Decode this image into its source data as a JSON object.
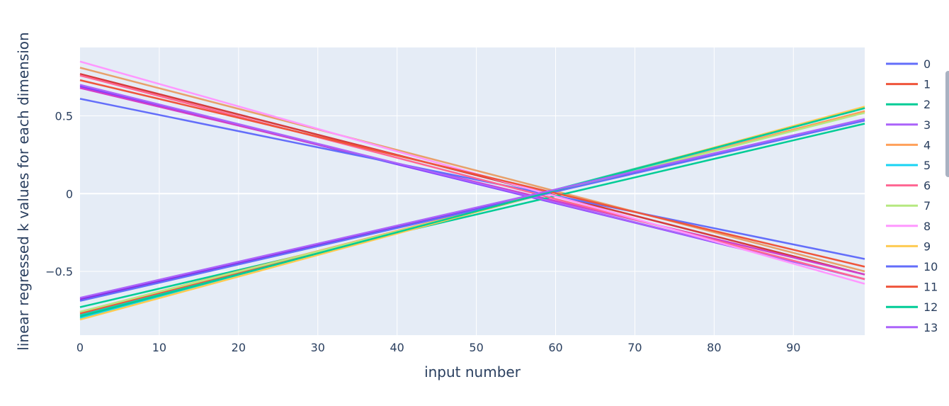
{
  "chart_data": {
    "type": "line",
    "xlabel": "input number",
    "ylabel": "linear regressed k values for each dimension",
    "xlim": [
      0,
      99
    ],
    "ylim": [
      -0.91,
      0.94
    ],
    "xticks": [
      0,
      10,
      20,
      30,
      40,
      50,
      60,
      70,
      80,
      90
    ],
    "yticks": [
      -0.5,
      0,
      0.5
    ],
    "ytick_labels": [
      "−0.5",
      "0",
      "0.5"
    ],
    "grid": true,
    "legend_position": "right",
    "plot_background": "#E5ECF6",
    "series": [
      {
        "name": "0",
        "color": "#636EFA",
        "x": [
          0,
          99
        ],
        "y": [
          0.61,
          -0.42
        ]
      },
      {
        "name": "1",
        "color": "#EF553B",
        "x": [
          0,
          99
        ],
        "y": [
          -0.77,
          0.53
        ]
      },
      {
        "name": "2",
        "color": "#00CC96",
        "x": [
          0,
          99
        ],
        "y": [
          -0.73,
          0.45
        ]
      },
      {
        "name": "3",
        "color": "#AB63FA",
        "x": [
          0,
          99
        ],
        "y": [
          0.7,
          -0.55
        ]
      },
      {
        "name": "4",
        "color": "#FFA15A",
        "x": [
          0,
          99
        ],
        "y": [
          -0.76,
          0.53
        ]
      },
      {
        "name": "5",
        "color": "#19D3F3",
        "x": [
          0,
          99
        ],
        "y": [
          -0.8,
          0.55
        ]
      },
      {
        "name": "6",
        "color": "#FF6692",
        "x": [
          0,
          99
        ],
        "y": [
          0.76,
          -0.55
        ]
      },
      {
        "name": "7",
        "color": "#B6E880",
        "x": [
          0,
          99
        ],
        "y": [
          -0.76,
          0.52
        ]
      },
      {
        "name": "8",
        "color": "#FF97FF",
        "x": [
          0,
          99
        ],
        "y": [
          0.85,
          -0.58
        ]
      },
      {
        "name": "9",
        "color": "#FECB52",
        "x": [
          0,
          99
        ],
        "y": [
          -0.81,
          0.56
        ]
      },
      {
        "name": "10",
        "color": "#636EFA",
        "x": [
          0,
          99
        ],
        "y": [
          -0.69,
          0.47
        ]
      },
      {
        "name": "11",
        "color": "#EF553B",
        "x": [
          0,
          99
        ],
        "y": [
          0.73,
          -0.47
        ]
      },
      {
        "name": "12",
        "color": "#00CC96",
        "x": [
          0,
          99
        ],
        "y": [
          -0.79,
          0.55
        ]
      },
      {
        "name": "13",
        "color": "#AB63FA",
        "x": [
          0,
          99
        ],
        "y": [
          -0.67,
          0.48
        ]
      }
    ],
    "overlap_series": [
      {
        "color": "#7F3CFF",
        "x": [
          0,
          99
        ],
        "y": [
          0.69,
          -0.55
        ]
      },
      {
        "color": "#D43B3B",
        "x": [
          0,
          99
        ],
        "y": [
          0.77,
          -0.52
        ]
      },
      {
        "color": "#E8A06A",
        "x": [
          0,
          99
        ],
        "y": [
          0.81,
          -0.5
        ]
      },
      {
        "color": "#D03FCB",
        "x": [
          0,
          99
        ],
        "y": [
          0.68,
          -0.52
        ]
      },
      {
        "color": "#8B2BE2",
        "x": [
          0,
          99
        ],
        "y": [
          -0.68,
          0.47
        ]
      },
      {
        "color": "#20C8B4",
        "x": [
          0,
          99
        ],
        "y": [
          -0.78,
          0.55
        ]
      }
    ]
  }
}
